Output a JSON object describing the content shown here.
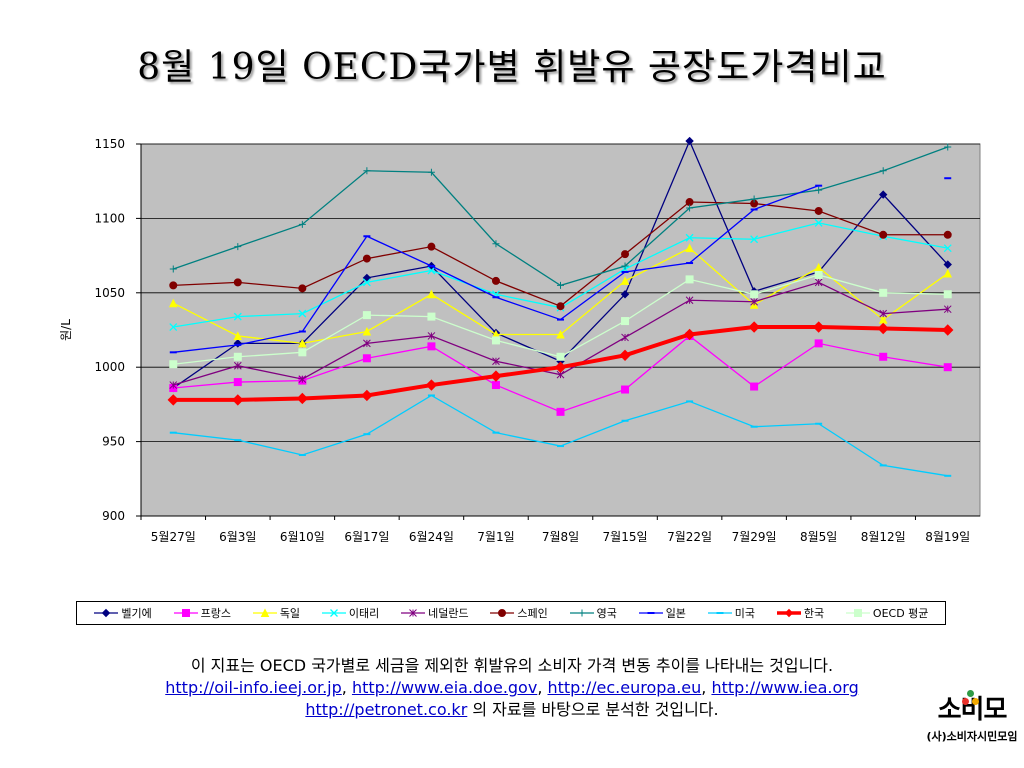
{
  "title": "8월 19일 OECD국가별 휘발유 공장도가격비교",
  "chart_data": {
    "type": "line",
    "ylabel": "원/L",
    "ylim": [
      900,
      1150
    ],
    "yticks": [
      900,
      950,
      1000,
      1050,
      1100,
      1150
    ],
    "grid": true,
    "legend_position": "bottom",
    "plot_background": "#c0c0c0",
    "categories": [
      "5월27일",
      "6월3일",
      "6월10일",
      "6월17일",
      "6월24일",
      "7월1일",
      "7월8일",
      "7월15일",
      "7월22일",
      "7월29일",
      "8월5일",
      "8월12일",
      "8월19일"
    ],
    "series": [
      {
        "name": "벨기에",
        "color": "#000080",
        "marker": "diamond",
        "values": [
          986,
          1016,
          1016,
          1060,
          1068,
          1023,
          1004,
          1049,
          1152,
          1051,
          1064,
          1116,
          1069
        ]
      },
      {
        "name": "프랑스",
        "color": "#ff00ff",
        "marker": "square",
        "values": [
          986,
          990,
          991,
          1006,
          1014,
          988,
          970,
          985,
          1021,
          987,
          1016,
          1007,
          1000
        ]
      },
      {
        "name": "독일",
        "color": "#ffff00",
        "marker": "triangle",
        "values": [
          1043,
          1021,
          1016,
          1024,
          1049,
          1022,
          1022,
          1058,
          1080,
          1042,
          1067,
          1032,
          1063
        ]
      },
      {
        "name": "이태리",
        "color": "#00ffff",
        "marker": "x",
        "values": [
          1027,
          1034,
          1036,
          1057,
          1065,
          1049,
          1040,
          1066,
          1087,
          1086,
          1097,
          1088,
          1080
        ]
      },
      {
        "name": "네덜란드",
        "color": "#800080",
        "marker": "star",
        "values": [
          988,
          1001,
          992,
          1016,
          1021,
          1004,
          995,
          1020,
          1045,
          1044,
          1057,
          1036,
          1039
        ]
      },
      {
        "name": "스페인",
        "color": "#800000",
        "marker": "circle",
        "values": [
          1055,
          1057,
          1053,
          1073,
          1081,
          1058,
          1041,
          1076,
          1111,
          1110,
          1105,
          1089,
          1089
        ]
      },
      {
        "name": "영국",
        "color": "#008080",
        "marker": "plus",
        "values": [
          1066,
          1081,
          1096,
          1132,
          1131,
          1083,
          1055,
          1068,
          1107,
          1113,
          1119,
          1132,
          1148
        ]
      },
      {
        "name": "일본",
        "color": "#0000ff",
        "marker": "dash",
        "values": [
          1010,
          1015,
          1024,
          1088,
          1068,
          1047,
          1032,
          1064,
          1070,
          1106,
          1122,
          null,
          1127
        ]
      },
      {
        "name": "미국",
        "color": "#00ccff",
        "marker": "dash",
        "values": [
          956,
          951,
          941,
          955,
          981,
          956,
          947,
          964,
          977,
          960,
          962,
          934,
          927
        ]
      },
      {
        "name": "한국",
        "color": "#ff0000",
        "marker": "diamond",
        "bold": true,
        "values": [
          978,
          978,
          979,
          981,
          988,
          994,
          1000,
          1008,
          1022,
          1027,
          1027,
          1026,
          1025
        ]
      },
      {
        "name": "OECD 평균",
        "color": "#ccffcc",
        "marker": "square",
        "values": [
          1002,
          1007,
          1010,
          1035,
          1034,
          1018,
          1007,
          1031,
          1059,
          1049,
          1062,
          1050,
          1049
        ]
      }
    ]
  },
  "note": {
    "line1": "이 지표는 OECD 국가별로 세금을 제외한 휘발유의 소비자 가격 변동 추이를 나타내는 것입니다.",
    "links": [
      "http://oil-info.ieej.or.jp",
      "http://www.eia.doe.gov",
      "http://ec.europa.eu",
      "http://www.iea.org",
      "http://petronet.co.kr"
    ],
    "sep": ", ",
    "line3_suffix": " 의 자료를 바탕으로 분석한 것입니다."
  },
  "logo": {
    "text": "소비모",
    "subtitle": "(사)소비자시민모임",
    "dot_colors": [
      "#e8322b",
      "#f2a900",
      "#2f9a45"
    ]
  }
}
